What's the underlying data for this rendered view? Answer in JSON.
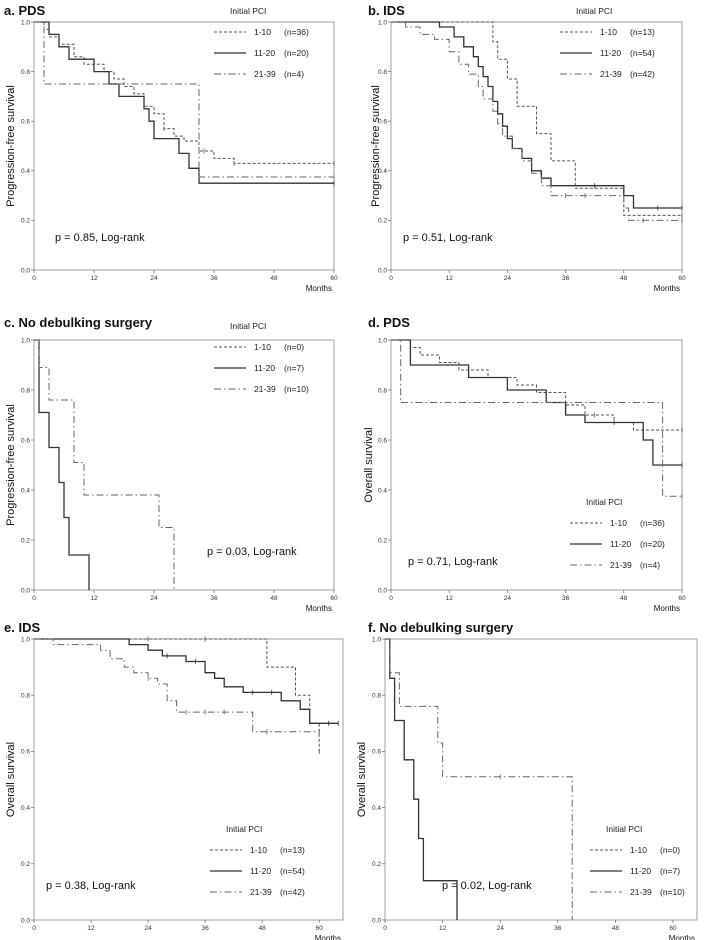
{
  "figure": {
    "legend_title": "Initial PCI",
    "x_axis_label": "Months",
    "x_ticks": [
      "0",
      "12",
      "24",
      "36",
      "48",
      "60"
    ],
    "y_ticks": [
      "0.0",
      "0.2",
      "0.4",
      "0.6",
      "0.8",
      "1.0"
    ],
    "line_colors": {
      "series_1_10": "#555555",
      "series_11_20": "#333333",
      "series_21_39": "#666666"
    }
  },
  "chart_data": [
    {
      "id": "a",
      "type": "line",
      "title": "a. PDS",
      "ylabel": "Progression-free survival",
      "xlabel": "Months",
      "xlim": [
        0,
        60
      ],
      "ylim": [
        0,
        1
      ],
      "pvalue_text": "p = 0.85, Log-rank",
      "legend_position": "top-right",
      "series": [
        {
          "name": "1-10",
          "label": "1-10",
          "n_label": "(n=36)",
          "steps": [
            [
              0,
              1.0
            ],
            [
              2,
              0.97
            ],
            [
              3,
              0.94
            ],
            [
              5,
              0.91
            ],
            [
              8,
              0.86
            ],
            [
              10,
              0.83
            ],
            [
              14,
              0.8
            ],
            [
              16,
              0.77
            ],
            [
              18,
              0.74
            ],
            [
              20,
              0.71
            ],
            [
              22,
              0.66
            ],
            [
              24,
              0.63
            ],
            [
              26,
              0.57
            ],
            [
              28,
              0.54
            ],
            [
              30,
              0.52
            ],
            [
              33,
              0.48
            ],
            [
              36,
              0.45
            ],
            [
              40,
              0.43
            ],
            [
              60,
              0.43
            ]
          ],
          "censored": [
            [
              26,
              0.57
            ],
            [
              34,
              0.48
            ],
            [
              40,
              0.43
            ],
            [
              60,
              0.43
            ]
          ]
        },
        {
          "name": "11-20",
          "label": "11-20",
          "n_label": "(n=20)",
          "steps": [
            [
              0,
              1.0
            ],
            [
              3,
              0.95
            ],
            [
              5,
              0.9
            ],
            [
              7,
              0.85
            ],
            [
              12,
              0.8
            ],
            [
              15,
              0.75
            ],
            [
              17,
              0.7
            ],
            [
              22,
              0.65
            ],
            [
              23,
              0.6
            ],
            [
              24,
              0.53
            ],
            [
              29,
              0.47
            ],
            [
              31,
              0.41
            ],
            [
              33,
              0.35
            ],
            [
              60,
              0.35
            ]
          ],
          "censored": [
            [
              60,
              0.35
            ]
          ]
        },
        {
          "name": "21-39",
          "label": "21-39",
          "n_label": "(n=4)",
          "steps": [
            [
              0,
              1.0
            ],
            [
              2,
              0.75
            ],
            [
              32,
              0.75
            ],
            [
              33,
              0.375
            ],
            [
              60,
              0.375
            ]
          ],
          "censored": [
            [
              60,
              0.375
            ]
          ]
        }
      ]
    },
    {
      "id": "b",
      "type": "line",
      "title": "b. IDS",
      "ylabel": "Progression-free survival",
      "xlabel": "Months",
      "xlim": [
        0,
        60
      ],
      "ylim": [
        0,
        1
      ],
      "pvalue_text": "p = 0.51, Log-rank",
      "legend_position": "top-right",
      "series": [
        {
          "name": "1-10",
          "label": "1-10",
          "n_label": "(n=13)",
          "steps": [
            [
              0,
              1.0
            ],
            [
              20,
              1.0
            ],
            [
              21,
              0.92
            ],
            [
              22,
              0.85
            ],
            [
              24,
              0.77
            ],
            [
              26,
              0.66
            ],
            [
              30,
              0.55
            ],
            [
              33,
              0.44
            ],
            [
              38,
              0.33
            ],
            [
              48,
              0.22
            ],
            [
              60,
              0.22
            ]
          ],
          "censored": [
            [
              60,
              0.22
            ]
          ]
        },
        {
          "name": "11-20",
          "label": "11-20",
          "n_label": "(n=54)",
          "steps": [
            [
              0,
              1.0
            ],
            [
              10,
              0.98
            ],
            [
              13,
              0.94
            ],
            [
              15,
              0.9
            ],
            [
              17,
              0.86
            ],
            [
              18,
              0.82
            ],
            [
              19,
              0.78
            ],
            [
              20,
              0.74
            ],
            [
              21,
              0.68
            ],
            [
              22,
              0.63
            ],
            [
              23,
              0.58
            ],
            [
              24,
              0.53
            ],
            [
              25,
              0.49
            ],
            [
              27,
              0.45
            ],
            [
              29,
              0.4
            ],
            [
              31,
              0.37
            ],
            [
              33,
              0.34
            ],
            [
              45,
              0.34
            ],
            [
              48,
              0.3
            ],
            [
              50,
              0.25
            ],
            [
              60,
              0.25
            ]
          ],
          "censored": [
            [
              42,
              0.34
            ],
            [
              55,
              0.25
            ],
            [
              60,
              0.25
            ]
          ]
        },
        {
          "name": "21-39",
          "label": "21-39",
          "n_label": "(n=42)",
          "steps": [
            [
              0,
              1.0
            ],
            [
              3,
              0.98
            ],
            [
              6,
              0.95
            ],
            [
              9,
              0.93
            ],
            [
              12,
              0.88
            ],
            [
              14,
              0.83
            ],
            [
              16,
              0.79
            ],
            [
              18,
              0.74
            ],
            [
              19,
              0.69
            ],
            [
              21,
              0.64
            ],
            [
              22,
              0.59
            ],
            [
              23,
              0.54
            ],
            [
              25,
              0.49
            ],
            [
              27,
              0.44
            ],
            [
              29,
              0.39
            ],
            [
              31,
              0.34
            ],
            [
              33,
              0.3
            ],
            [
              47,
              0.3
            ],
            [
              48,
              0.25
            ],
            [
              49,
              0.2
            ],
            [
              60,
              0.2
            ]
          ],
          "censored": [
            [
              36,
              0.3
            ],
            [
              40,
              0.3
            ],
            [
              52,
              0.2
            ],
            [
              60,
              0.2
            ]
          ]
        }
      ]
    },
    {
      "id": "c",
      "type": "line",
      "title": "c. No debulking surgery",
      "ylabel": "Progression-free survival",
      "xlabel": "Months",
      "xlim": [
        0,
        60
      ],
      "ylim": [
        0,
        1
      ],
      "pvalue_text": "p = 0.03, Log-rank",
      "legend_position": "top-right",
      "series": [
        {
          "name": "1-10",
          "label": "1-10",
          "n_label": "(n=0)",
          "steps": [],
          "censored": []
        },
        {
          "name": "11-20",
          "label": "11-20",
          "n_label": "(n=7)",
          "steps": [
            [
              0,
              1.0
            ],
            [
              1,
              0.71
            ],
            [
              3,
              0.57
            ],
            [
              5,
              0.43
            ],
            [
              6,
              0.29
            ],
            [
              7,
              0.14
            ],
            [
              11,
              0.0
            ]
          ],
          "censored": []
        },
        {
          "name": "21-39",
          "label": "21-39",
          "n_label": "(n=10)",
          "steps": [
            [
              0,
              1.0
            ],
            [
              1,
              0.89
            ],
            [
              3,
              0.76
            ],
            [
              8,
              0.51
            ],
            [
              10,
              0.38
            ],
            [
              25,
              0.25
            ],
            [
              28,
              0.0
            ]
          ],
          "censored": []
        }
      ]
    },
    {
      "id": "d",
      "type": "line",
      "title": "d. PDS",
      "ylabel": "Overall survival",
      "xlabel": "Months",
      "xlim": [
        0,
        60
      ],
      "ylim": [
        0,
        1
      ],
      "pvalue_text": "p = 0.71, Log-rank",
      "legend_position": "bottom-right",
      "series": [
        {
          "name": "1-10",
          "label": "1-10",
          "n_label": "(n=36)",
          "steps": [
            [
              0,
              1.0
            ],
            [
              4,
              0.97
            ],
            [
              6,
              0.94
            ],
            [
              10,
              0.91
            ],
            [
              14,
              0.88
            ],
            [
              20,
              0.85
            ],
            [
              26,
              0.82
            ],
            [
              30,
              0.79
            ],
            [
              36,
              0.74
            ],
            [
              40,
              0.7
            ],
            [
              46,
              0.67
            ],
            [
              50,
              0.64
            ],
            [
              60,
              0.64
            ]
          ],
          "censored": [
            [
              32,
              0.79
            ],
            [
              42,
              0.7
            ],
            [
              46,
              0.67
            ],
            [
              60,
              0.64
            ]
          ]
        },
        {
          "name": "11-20",
          "label": "11-20",
          "n_label": "(n=20)",
          "steps": [
            [
              0,
              1.0
            ],
            [
              4,
              0.9
            ],
            [
              16,
              0.85
            ],
            [
              24,
              0.8
            ],
            [
              32,
              0.75
            ],
            [
              36,
              0.7
            ],
            [
              40,
              0.67
            ],
            [
              52,
              0.6
            ],
            [
              54,
              0.5
            ],
            [
              60,
              0.5
            ]
          ],
          "censored": [
            [
              60,
              0.5
            ]
          ]
        },
        {
          "name": "21-39",
          "label": "21-39",
          "n_label": "(n=4)",
          "steps": [
            [
              0,
              1.0
            ],
            [
              2,
              0.75
            ],
            [
              54,
              0.75
            ],
            [
              56,
              0.375
            ],
            [
              60,
              0.375
            ]
          ],
          "censored": [
            [
              60,
              0.375
            ]
          ]
        }
      ]
    },
    {
      "id": "e",
      "type": "line",
      "title": "e. IDS",
      "ylabel": "Overall survival",
      "xlabel": "Months",
      "xlim": [
        0,
        65
      ],
      "ylim": [
        0,
        1
      ],
      "pvalue_text": "p = 0.38, Log-rank",
      "legend_position": "bottom-right",
      "series": [
        {
          "name": "1-10",
          "label": "1-10",
          "n_label": "(n=13)",
          "steps": [
            [
              0,
              1.0
            ],
            [
              48,
              1.0
            ],
            [
              49,
              0.9
            ],
            [
              55,
              0.8
            ],
            [
              58,
              0.7
            ],
            [
              60,
              0.6
            ]
          ],
          "censored": [
            [
              24,
              1.0
            ],
            [
              36,
              1.0
            ],
            [
              60,
              0.6
            ]
          ]
        },
        {
          "name": "11-20",
          "label": "11-20",
          "n_label": "(n=54)",
          "steps": [
            [
              0,
              1.0
            ],
            [
              20,
              0.98
            ],
            [
              24,
              0.96
            ],
            [
              27,
              0.94
            ],
            [
              32,
              0.92
            ],
            [
              36,
              0.88
            ],
            [
              38,
              0.86
            ],
            [
              40,
              0.83
            ],
            [
              44,
              0.81
            ],
            [
              52,
              0.78
            ],
            [
              56,
              0.75
            ],
            [
              58,
              0.7
            ],
            [
              64,
              0.7
            ]
          ],
          "censored": [
            [
              28,
              0.94
            ],
            [
              34,
              0.92
            ],
            [
              46,
              0.81
            ],
            [
              50,
              0.81
            ],
            [
              62,
              0.7
            ],
            [
              64,
              0.7
            ]
          ]
        },
        {
          "name": "21-39",
          "label": "21-39",
          "n_label": "(n=42)",
          "steps": [
            [
              0,
              1.0
            ],
            [
              4,
              0.98
            ],
            [
              14,
              0.96
            ],
            [
              16,
              0.93
            ],
            [
              19,
              0.9
            ],
            [
              21,
              0.88
            ],
            [
              24,
              0.86
            ],
            [
              26,
              0.84
            ],
            [
              28,
              0.78
            ],
            [
              30,
              0.74
            ],
            [
              44,
              0.74
            ],
            [
              46,
              0.67
            ],
            [
              60,
              0.67
            ]
          ],
          "censored": [
            [
              24,
              0.86
            ],
            [
              32,
              0.74
            ],
            [
              36,
              0.74
            ],
            [
              40,
              0.74
            ],
            [
              49,
              0.67
            ],
            [
              60,
              0.67
            ]
          ]
        }
      ]
    },
    {
      "id": "f",
      "type": "line",
      "title": "f. No debulking surgery",
      "ylabel": "Overall survival",
      "xlabel": "Months",
      "xlim": [
        0,
        65
      ],
      "ylim": [
        0,
        1
      ],
      "pvalue_text": "p = 0.02, Log-rank",
      "legend_position": "bottom-right",
      "series": [
        {
          "name": "1-10",
          "label": "1-10",
          "n_label": "(n=0)",
          "steps": [],
          "censored": []
        },
        {
          "name": "11-20",
          "label": "11-20",
          "n_label": "(n=7)",
          "steps": [
            [
              0,
              1.0
            ],
            [
              1,
              0.86
            ],
            [
              2,
              0.71
            ],
            [
              4,
              0.57
            ],
            [
              6,
              0.43
            ],
            [
              7,
              0.29
            ],
            [
              8,
              0.14
            ],
            [
              15,
              0.0
            ]
          ],
          "censored": []
        },
        {
          "name": "21-39",
          "label": "21-39",
          "n_label": "(n=10)",
          "steps": [
            [
              0,
              1.0
            ],
            [
              1,
              0.88
            ],
            [
              3,
              0.76
            ],
            [
              11,
              0.63
            ],
            [
              12,
              0.51
            ],
            [
              38,
              0.51
            ],
            [
              39,
              0.0
            ]
          ],
          "censored": [
            [
              24,
              0.51
            ]
          ]
        }
      ]
    }
  ]
}
